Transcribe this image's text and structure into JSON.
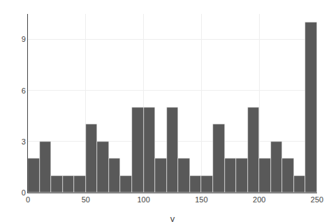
{
  "chart_data": {
    "type": "histogram",
    "xlabel": "v",
    "bins": [
      0,
      10,
      20,
      30,
      40,
      50,
      60,
      70,
      80,
      90,
      100,
      110,
      120,
      130,
      140,
      150,
      160,
      170,
      180,
      190,
      200,
      210,
      220,
      230,
      240,
      250
    ],
    "values": [
      2,
      3,
      1,
      1,
      1,
      4,
      3,
      2,
      1,
      5,
      5,
      2,
      5,
      2,
      1,
      1,
      4,
      2,
      2,
      5,
      2,
      3,
      2,
      1,
      10
    ],
    "color": "#595959",
    "xlim": [
      0,
      250
    ],
    "ylim": [
      0,
      10.5
    ],
    "xticks": [
      0,
      50,
      100,
      150,
      200,
      250
    ],
    "yticks": [
      0,
      3,
      6,
      9
    ],
    "grid": true
  }
}
